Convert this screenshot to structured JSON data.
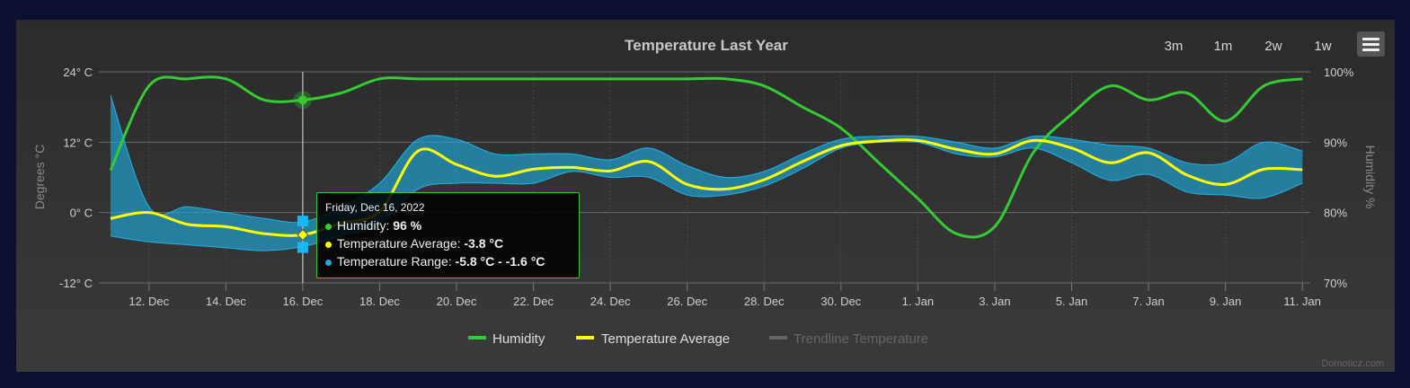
{
  "chart_data": {
    "type": "line",
    "title": "Temperature Last Year",
    "x": [
      "11 Dec",
      "12 Dec",
      "13 Dec",
      "14 Dec",
      "15 Dec",
      "16 Dec",
      "17 Dec",
      "18 Dec",
      "19 Dec",
      "20 Dec",
      "21 Dec",
      "22 Dec",
      "23 Dec",
      "24 Dec",
      "25 Dec",
      "26 Dec",
      "27 Dec",
      "28 Dec",
      "29 Dec",
      "30 Dec",
      "31 Dec",
      "1 Jan",
      "2 Jan",
      "3 Jan",
      "4 Jan",
      "5 Jan",
      "6 Jan",
      "7 Jan",
      "8 Jan",
      "9 Jan",
      "10 Jan",
      "11 Jan"
    ],
    "x_tick_labels": [
      "12. Dec",
      "14. Dec",
      "16. Dec",
      "18. Dec",
      "20. Dec",
      "22. Dec",
      "24. Dec",
      "26. Dec",
      "28. Dec",
      "30. Dec",
      "1. Jan",
      "3. Jan",
      "5. Jan",
      "7. Jan",
      "9. Jan",
      "11. Jan"
    ],
    "y_left": {
      "label": "Degrees °C",
      "ticks": [
        "24° C",
        "12° C",
        "0° C",
        "-12° C"
      ],
      "range": [
        -12,
        24
      ]
    },
    "y_right": {
      "label": "Humidity %",
      "ticks": [
        "100%",
        "90%",
        "80%",
        "70%"
      ],
      "range": [
        70,
        100
      ]
    },
    "grid": true,
    "legend_position": "bottom",
    "series": [
      {
        "name": "Humidity",
        "axis": "right",
        "color": "#33cc33",
        "values": [
          86,
          98,
          99,
          99,
          96,
          96,
          97,
          99,
          99,
          99,
          99,
          99,
          99,
          99,
          99,
          99,
          99,
          98,
          95,
          92,
          87,
          82,
          77,
          78,
          88.5,
          94,
          98,
          96,
          97,
          93,
          98,
          99
        ]
      },
      {
        "name": "Temperature Average",
        "axis": "left",
        "color": "#ffff00",
        "values": [
          -1,
          0,
          -2,
          -2.4,
          -3.6,
          -3.8,
          -1.8,
          0.2,
          10.5,
          8.2,
          6.2,
          7.4,
          7.7,
          7.1,
          8.7,
          4.8,
          4,
          5.6,
          8.7,
          11.4,
          12.2,
          12.3,
          10.8,
          10,
          12.3,
          11,
          8.5,
          10.2,
          6.4,
          4.8,
          7.4,
          7.3
        ]
      },
      {
        "name": "Temperature Range",
        "axis": "left",
        "color": "#1fa8d8",
        "type": "arearange",
        "low": [
          -4,
          -5,
          -5.5,
          -6,
          -6.5,
          -5.8,
          -4,
          -2,
          4,
          5,
          5,
          5,
          7,
          6,
          6,
          3,
          3,
          4.5,
          7.5,
          11,
          12,
          12,
          10,
          9.5,
          11,
          8.5,
          5.5,
          6.5,
          3.5,
          3,
          2.5,
          5
        ],
        "high": [
          20,
          1,
          1,
          0,
          -1,
          -1.6,
          1,
          5,
          12.5,
          12.5,
          10,
          10,
          10,
          9,
          11,
          8,
          6,
          7,
          10,
          12.5,
          13,
          13,
          12,
          11,
          13,
          12.5,
          11.5,
          11,
          8.5,
          8.5,
          12,
          10.5
        ]
      },
      {
        "name": "Trendline Temperature",
        "hidden": true,
        "color": "#666666"
      }
    ]
  },
  "range_buttons": [
    "3m",
    "1m",
    "2w",
    "1w"
  ],
  "tooltip": {
    "date": "Friday, Dec 16, 2022",
    "humidity_label": "Humidity: ",
    "humidity_value": "96 %",
    "avg_label": "Temperature Average: ",
    "avg_value": "-3.8 °C",
    "range_label": "Temperature Range: ",
    "range_value": "-5.8 °C - -1.6 °C"
  },
  "credit": "Domoticz.com",
  "colors": {
    "humidity": "#33cc33",
    "average": "#ffff00",
    "range": "#1fa8d8",
    "tooltip_border": "#3ac83a"
  }
}
